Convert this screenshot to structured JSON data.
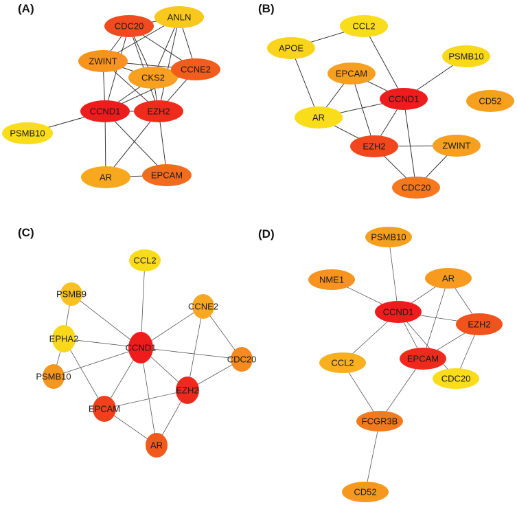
{
  "panels": [
    {
      "label": "(A)",
      "nodes": [
        {
          "id": "CDC20",
          "label": "CDC20",
          "color": "#f04a1e"
        },
        {
          "id": "ANLN",
          "label": "ANLN",
          "color": "#f8c81c"
        },
        {
          "id": "ZWINT",
          "label": "ZWINT",
          "color": "#f7931e"
        },
        {
          "id": "CKS2",
          "label": "CKS2",
          "color": "#f8a020"
        },
        {
          "id": "CCNE2",
          "label": "CCNE2",
          "color": "#f25c1c"
        },
        {
          "id": "CCND1",
          "label": "CCND1",
          "color": "#ee1c1c"
        },
        {
          "id": "EZH2",
          "label": "EZH2",
          "color": "#ef2b1c"
        },
        {
          "id": "PSMB10",
          "label": "PSMB10",
          "color": "#f9dc1a"
        },
        {
          "id": "AR",
          "label": "AR",
          "color": "#f8a81e"
        },
        {
          "id": "EPCAM",
          "label": "EPCAM",
          "color": "#f26c1e"
        }
      ],
      "edges": [
        [
          "CDC20",
          "ZWINT"
        ],
        [
          "CDC20",
          "CCND1"
        ],
        [
          "CDC20",
          "CKS2"
        ],
        [
          "CDC20",
          "EZH2"
        ],
        [
          "CDC20",
          "CCNE2"
        ],
        [
          "CDC20",
          "ANLN"
        ],
        [
          "ANLN",
          "ZWINT"
        ],
        [
          "ANLN",
          "CKS2"
        ],
        [
          "ANLN",
          "EZH2"
        ],
        [
          "ANLN",
          "CCNE2"
        ],
        [
          "ZWINT",
          "CKS2"
        ],
        [
          "ZWINT",
          "CCNE2"
        ],
        [
          "ZWINT",
          "CCND1"
        ],
        [
          "ZWINT",
          "EZH2"
        ],
        [
          "CKS2",
          "CCND1"
        ],
        [
          "CKS2",
          "EZH2"
        ],
        [
          "CCNE2",
          "CCND1"
        ],
        [
          "CCNE2",
          "EZH2"
        ],
        [
          "CCND1",
          "EZH2"
        ],
        [
          "CCND1",
          "PSMB10"
        ],
        [
          "CCND1",
          "AR"
        ],
        [
          "CCND1",
          "EPCAM"
        ],
        [
          "EZH2",
          "AR"
        ],
        [
          "EZH2",
          "EPCAM"
        ],
        [
          "AR",
          "EPCAM"
        ]
      ]
    },
    {
      "label": "(B)",
      "nodes": [
        {
          "id": "CCL2",
          "label": "CCL2",
          "color": "#f9dc1a"
        },
        {
          "id": "APOE",
          "label": "APOE",
          "color": "#f9d41a"
        },
        {
          "id": "PSMB10",
          "label": "PSMB10",
          "color": "#f9d81a"
        },
        {
          "id": "EPCAM",
          "label": "EPCAM",
          "color": "#f7a020"
        },
        {
          "id": "CCND1",
          "label": "CCND1",
          "color": "#ee1c1c"
        },
        {
          "id": "CD52",
          "label": "CD52",
          "color": "#f7a020"
        },
        {
          "id": "AR",
          "label": "AR",
          "color": "#f9dc1a"
        },
        {
          "id": "EZH2",
          "label": "EZH2",
          "color": "#f0481c"
        },
        {
          "id": "ZWINT",
          "label": "ZWINT",
          "color": "#f7a020"
        },
        {
          "id": "CDC20",
          "label": "CDC20",
          "color": "#f5781e"
        }
      ],
      "edges": [
        [
          "CCL2",
          "APOE"
        ],
        [
          "CCL2",
          "CCND1"
        ],
        [
          "PSMB10",
          "CCND1"
        ],
        [
          "APOE",
          "AR"
        ],
        [
          "EPCAM",
          "CCND1"
        ],
        [
          "EPCAM",
          "AR"
        ],
        [
          "EPCAM",
          "EZH2"
        ],
        [
          "AR",
          "CCND1"
        ],
        [
          "AR",
          "EZH2"
        ],
        [
          "CCND1",
          "EZH2"
        ],
        [
          "CCND1",
          "CDC20"
        ],
        [
          "EZH2",
          "ZWINT"
        ],
        [
          "EZH2",
          "CDC20"
        ],
        [
          "ZWINT",
          "CDC20"
        ]
      ]
    },
    {
      "label": "(C)",
      "nodes": [
        {
          "id": "CCL2",
          "label": "CCL2",
          "color": "#f8dc1a"
        },
        {
          "id": "PSMB9",
          "label": "PSMB9",
          "color": "#f8c020"
        },
        {
          "id": "CCNE2",
          "label": "CCNE2",
          "color": "#f8a820"
        },
        {
          "id": "EPHA2",
          "label": "EPHA2",
          "color": "#f9d81a"
        },
        {
          "id": "CCND1",
          "label": "CCND1",
          "color": "#f01c1c"
        },
        {
          "id": "CDC20",
          "label": "CDC20",
          "color": "#f58a1e"
        },
        {
          "id": "PSMB10",
          "label": "PSMB10",
          "color": "#f5961e"
        },
        {
          "id": "EZH2",
          "label": "EZH2",
          "color": "#ee2a1c"
        },
        {
          "id": "EPCAM",
          "label": "EPCAM",
          "color": "#f0401c"
        },
        {
          "id": "AR",
          "label": "AR",
          "color": "#f25a1c"
        }
      ],
      "edges": [
        [
          "CCL2",
          "CCND1"
        ],
        [
          "PSMB9",
          "CCND1"
        ],
        [
          "PSMB9",
          "EPHA2"
        ],
        [
          "EPHA2",
          "CCND1"
        ],
        [
          "EPHA2",
          "PSMB10"
        ],
        [
          "EPHA2",
          "EPCAM"
        ],
        [
          "PSMB10",
          "CCND1"
        ],
        [
          "CCNE2",
          "CCND1"
        ],
        [
          "CCNE2",
          "EZH2"
        ],
        [
          "CCNE2",
          "CDC20"
        ],
        [
          "CCND1",
          "CDC20"
        ],
        [
          "CCND1",
          "EZH2"
        ],
        [
          "CCND1",
          "EPCAM"
        ],
        [
          "CCND1",
          "AR"
        ],
        [
          "EZH2",
          "EPCAM"
        ],
        [
          "EZH2",
          "CDC20"
        ],
        [
          "EZH2",
          "AR"
        ],
        [
          "EPCAM",
          "AR"
        ]
      ]
    },
    {
      "label": "(D)",
      "nodes": [
        {
          "id": "PSMB10",
          "label": "PSMB10",
          "color": "#f7a020"
        },
        {
          "id": "NME1",
          "label": "NME1",
          "color": "#f7931e"
        },
        {
          "id": "AR",
          "label": "AR",
          "color": "#f79a1e"
        },
        {
          "id": "CCND1",
          "label": "CCND1",
          "color": "#ee1c1c"
        },
        {
          "id": "EZH2",
          "label": "EZH2",
          "color": "#f2521c"
        },
        {
          "id": "CCL2",
          "label": "CCL2",
          "color": "#f8b020"
        },
        {
          "id": "EPCAM",
          "label": "EPCAM",
          "color": "#ee2a1c"
        },
        {
          "id": "CDC20",
          "label": "CDC20",
          "color": "#f9dc1a"
        },
        {
          "id": "FCGR3B",
          "label": "FCGR3B",
          "color": "#f27a1e"
        },
        {
          "id": "CD52",
          "label": "CD52",
          "color": "#f7981e"
        }
      ],
      "edges": [
        [
          "PSMB10",
          "CCND1"
        ],
        [
          "NME1",
          "CCND1"
        ],
        [
          "AR",
          "CCND1"
        ],
        [
          "AR",
          "EPCAM"
        ],
        [
          "AR",
          "EZH2"
        ],
        [
          "CCND1",
          "EZH2"
        ],
        [
          "CCND1",
          "EPCAM"
        ],
        [
          "CCND1",
          "CDC20"
        ],
        [
          "CCND1",
          "CCL2"
        ],
        [
          "EZH2",
          "EPCAM"
        ],
        [
          "EZH2",
          "CDC20"
        ],
        [
          "EPCAM",
          "FCGR3B"
        ],
        [
          "CCL2",
          "FCGR3B"
        ],
        [
          "FCGR3B",
          "CD52"
        ]
      ]
    }
  ]
}
